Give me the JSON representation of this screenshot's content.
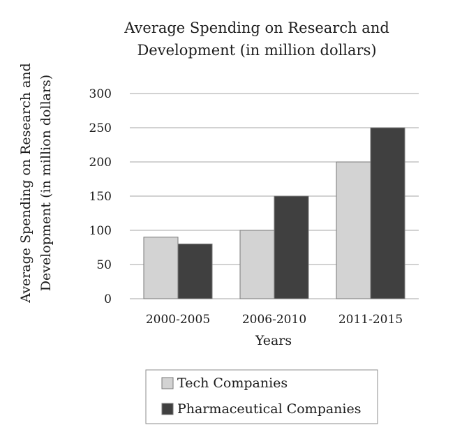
{
  "chart_data": {
    "type": "bar",
    "title": [
      "Average Spending on Research and",
      "Development (in million dollars)"
    ],
    "xlabel": "Years",
    "ylabel": [
      "Average Spending on Research and",
      "Development (in million dollars)"
    ],
    "categories": [
      "2000-2005",
      "2006-2010",
      "2011-2015"
    ],
    "series": [
      {
        "name": "Tech Companies",
        "values": [
          90,
          100,
          200
        ],
        "color": "#d3d3d3"
      },
      {
        "name": "Pharmaceutical Companies",
        "values": [
          80,
          150,
          250
        ],
        "color": "#404040"
      }
    ],
    "ylim": [
      0,
      300
    ],
    "yticks": [
      0,
      50,
      100,
      150,
      200,
      250,
      300
    ],
    "grid": true,
    "legend_position": "bottom"
  }
}
